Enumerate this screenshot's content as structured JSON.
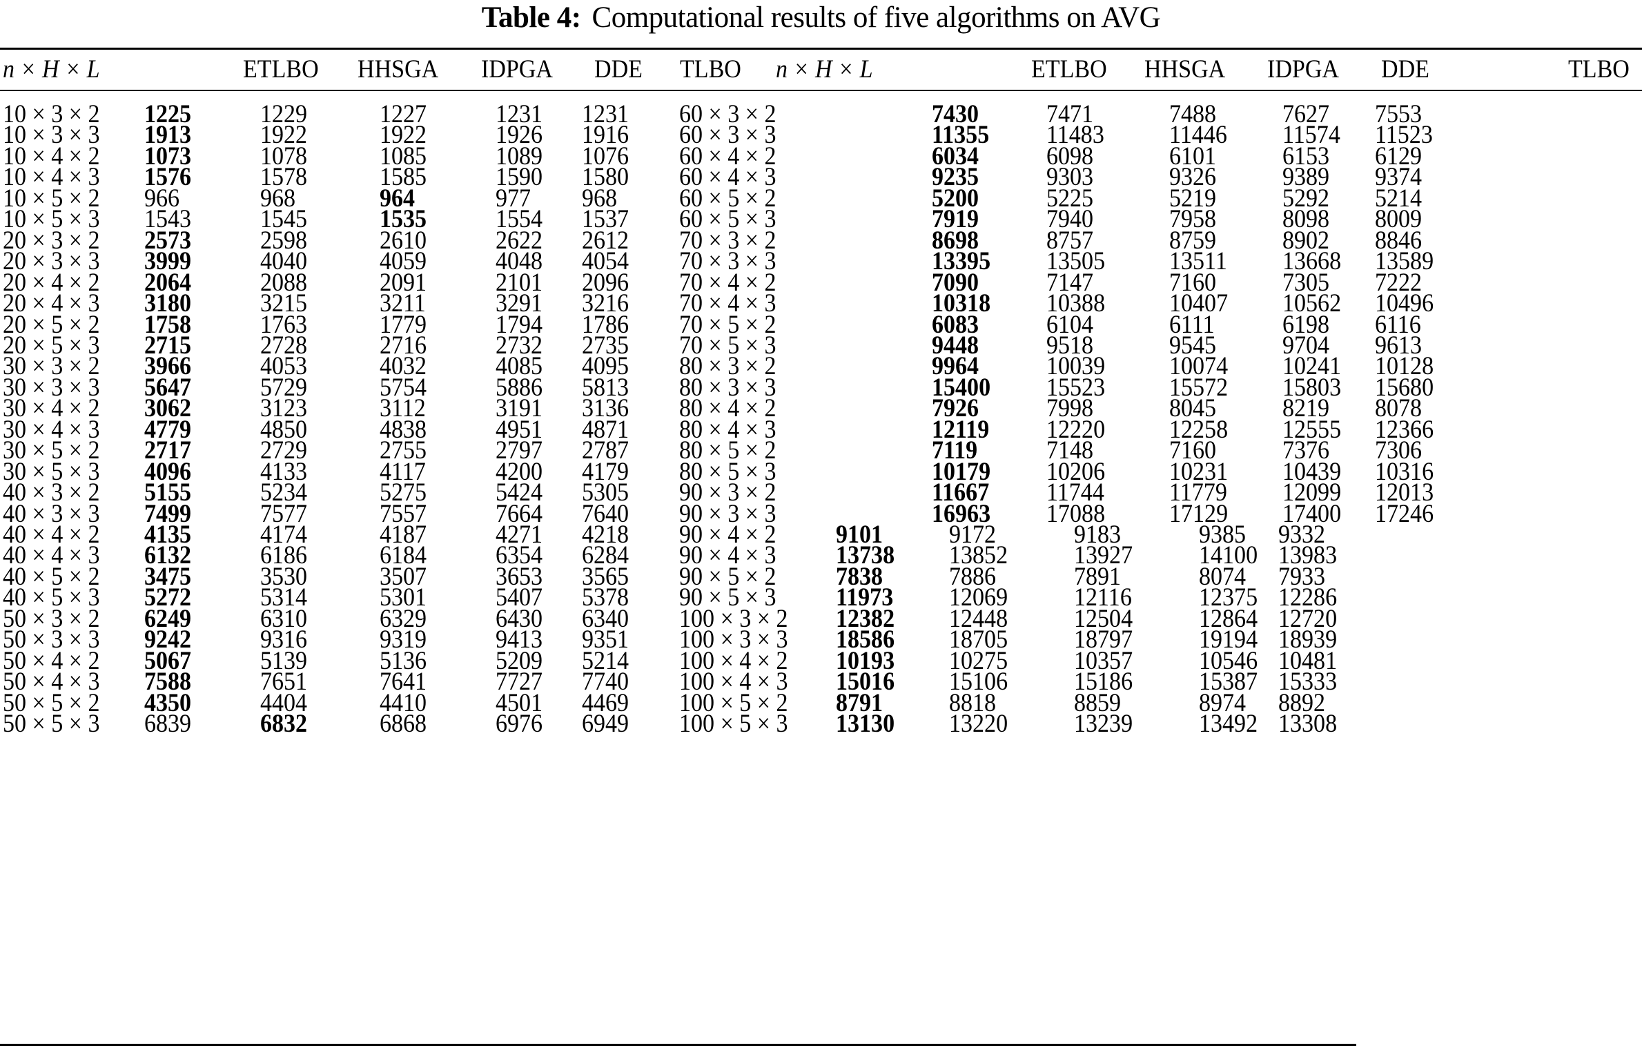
{
  "caption": {
    "label": "Table 4:",
    "text": "Computational results of five algorithms on AVG"
  },
  "header": {
    "left": [
      "n × H × L",
      "",
      "ETLBO",
      "HHSGA",
      "IDPGA",
      "DDE",
      "TLBO"
    ],
    "right": [
      "n × H × L",
      "",
      "ETLBO",
      "HHSGA",
      "IDPGA",
      "DDE",
      "",
      "TLBO"
    ]
  },
  "columns_meaning": [
    "Instance (n × H × L)",
    "ETLBO",
    "HHSGA",
    "IDPGA",
    "DDE",
    "TLBO"
  ],
  "left_rows": [
    {
      "inst": "10 × 3 × 2",
      "v": [
        "1225",
        "1229",
        "1227",
        "1231",
        "1231"
      ],
      "best": 0
    },
    {
      "inst": "10 × 3 × 3",
      "v": [
        "1913",
        "1922",
        "1922",
        "1926",
        "1916"
      ],
      "best": 0
    },
    {
      "inst": "10 × 4 × 2",
      "v": [
        "1073",
        "1078",
        "1085",
        "1089",
        "1076"
      ],
      "best": 0
    },
    {
      "inst": "10 × 4 × 3",
      "v": [
        "1576",
        "1578",
        "1585",
        "1590",
        "1580"
      ],
      "best": 0
    },
    {
      "inst": "10 × 5 × 2",
      "v": [
        "966",
        "968",
        "964",
        "977",
        "968"
      ],
      "best": 2
    },
    {
      "inst": "10 × 5 × 3",
      "v": [
        "1543",
        "1545",
        "1535",
        "1554",
        "1537"
      ],
      "best": 2
    },
    {
      "inst": "20 × 3 × 2",
      "v": [
        "2573",
        "2598",
        "2610",
        "2622",
        "2612"
      ],
      "best": 0
    },
    {
      "inst": "20 × 3 × 3",
      "v": [
        "3999",
        "4040",
        "4059",
        "4048",
        "4054"
      ],
      "best": 0
    },
    {
      "inst": "20 × 4 × 2",
      "v": [
        "2064",
        "2088",
        "2091",
        "2101",
        "2096"
      ],
      "best": 0
    },
    {
      "inst": "20 × 4 × 3",
      "v": [
        "3180",
        "3215",
        "3211",
        "3291",
        "3216"
      ],
      "best": 0
    },
    {
      "inst": "20 × 5 × 2",
      "v": [
        "1758",
        "1763",
        "1779",
        "1794",
        "1786"
      ],
      "best": 0
    },
    {
      "inst": "20 × 5 × 3",
      "v": [
        "2715",
        "2728",
        "2716",
        "2732",
        "2735"
      ],
      "best": 0
    },
    {
      "inst": "30 × 3 × 2",
      "v": [
        "3966",
        "4053",
        "4032",
        "4085",
        "4095"
      ],
      "best": 0
    },
    {
      "inst": "30 × 3 × 3",
      "v": [
        "5647",
        "5729",
        "5754",
        "5886",
        "5813"
      ],
      "best": 0
    },
    {
      "inst": "30 × 4 × 2",
      "v": [
        "3062",
        "3123",
        "3112",
        "3191",
        "3136"
      ],
      "best": 0
    },
    {
      "inst": "30 × 4 × 3",
      "v": [
        "4779",
        "4850",
        "4838",
        "4951",
        "4871"
      ],
      "best": 0
    },
    {
      "inst": "30 × 5 × 2",
      "v": [
        "2717",
        "2729",
        "2755",
        "2797",
        "2787"
      ],
      "best": 0
    },
    {
      "inst": "30 × 5 × 3",
      "v": [
        "4096",
        "4133",
        "4117",
        "4200",
        "4179"
      ],
      "best": 0
    },
    {
      "inst": "40 × 3 × 2",
      "v": [
        "5155",
        "5234",
        "5275",
        "5424",
        "5305"
      ],
      "best": 0
    },
    {
      "inst": "40 × 3 × 3",
      "v": [
        "7499",
        "7577",
        "7557",
        "7664",
        "7640"
      ],
      "best": 0
    },
    {
      "inst": "40 × 4 × 2",
      "v": [
        "4135",
        "4174",
        "4187",
        "4271",
        "4218"
      ],
      "best": 0
    },
    {
      "inst": "40 × 4 × 3",
      "v": [
        "6132",
        "6186",
        "6184",
        "6354",
        "6284"
      ],
      "best": 0
    },
    {
      "inst": "40 × 5 × 2",
      "v": [
        "3475",
        "3530",
        "3507",
        "3653",
        "3565"
      ],
      "best": 0
    },
    {
      "inst": "40 × 5 × 3",
      "v": [
        "5272",
        "5314",
        "5301",
        "5407",
        "5378"
      ],
      "best": 0
    },
    {
      "inst": "50 × 3 × 2",
      "v": [
        "6249",
        "6310",
        "6329",
        "6430",
        "6340"
      ],
      "best": 0
    },
    {
      "inst": "50 × 3 × 3",
      "v": [
        "9242",
        "9316",
        "9319",
        "9413",
        "9351"
      ],
      "best": 0
    },
    {
      "inst": "50 × 4 × 2",
      "v": [
        "5067",
        "5139",
        "5136",
        "5209",
        "5214"
      ],
      "best": 0
    },
    {
      "inst": "50 × 4 × 3",
      "v": [
        "7588",
        "7651",
        "7641",
        "7727",
        "7740"
      ],
      "best": 0
    },
    {
      "inst": "50 × 5 × 2",
      "v": [
        "4350",
        "4404",
        "4410",
        "4501",
        "4469"
      ],
      "best": 0
    },
    {
      "inst": "50 × 5 × 3",
      "v": [
        "6839",
        "6832",
        "6868",
        "6976",
        "6949"
      ],
      "best": 1
    }
  ],
  "right_rows": [
    {
      "inst": "60 × 3 × 2",
      "v": [
        "7430",
        "7471",
        "7488",
        "7627",
        "7553"
      ],
      "best": 0
    },
    {
      "inst": "60 × 3 × 3",
      "v": [
        "11355",
        "11483",
        "11446",
        "11574",
        "11523"
      ],
      "best": 0
    },
    {
      "inst": "60 × 4 × 2",
      "v": [
        "6034",
        "6098",
        "6101",
        "6153",
        "6129"
      ],
      "best": 0
    },
    {
      "inst": "60 × 4 × 3",
      "v": [
        "9235",
        "9303",
        "9326",
        "9389",
        "9374"
      ],
      "best": 0
    },
    {
      "inst": "60 × 5 × 2",
      "v": [
        "5200",
        "5225",
        "5219",
        "5292",
        "5214"
      ],
      "best": 0
    },
    {
      "inst": "60 × 5 × 3",
      "v": [
        "7919",
        "7940",
        "7958",
        "8098",
        "8009"
      ],
      "best": 0
    },
    {
      "inst": "70 × 3 × 2",
      "v": [
        "8698",
        "8757",
        "8759",
        "8902",
        "8846"
      ],
      "best": 0
    },
    {
      "inst": "70 × 3 × 3",
      "v": [
        "13395",
        "13505",
        "13511",
        "13668",
        "13589"
      ],
      "best": 0
    },
    {
      "inst": "70 × 4 × 2",
      "v": [
        "7090",
        "7147",
        "7160",
        "7305",
        "7222"
      ],
      "best": 0
    },
    {
      "inst": "70 × 4 × 3",
      "v": [
        "10318",
        "10388",
        "10407",
        "10562",
        "10496"
      ],
      "best": 0
    },
    {
      "inst": "70 × 5 × 2",
      "v": [
        "6083",
        "6104",
        "6111",
        "6198",
        "6116"
      ],
      "best": 0
    },
    {
      "inst": "70 × 5 × 3",
      "v": [
        "9448",
        "9518",
        "9545",
        "9704",
        "9613"
      ],
      "best": 0
    },
    {
      "inst": "80 × 3 × 2",
      "v": [
        "9964",
        "10039",
        "10074",
        "10241",
        "10128"
      ],
      "best": 0
    },
    {
      "inst": "80 × 3 × 3",
      "v": [
        "15400",
        "15523",
        "15572",
        "15803",
        "15680"
      ],
      "best": 0
    },
    {
      "inst": "80 × 4 × 2",
      "v": [
        "7926",
        "7998",
        "8045",
        "8219",
        "8078"
      ],
      "best": 0
    },
    {
      "inst": "80 × 4 × 3",
      "v": [
        "12119",
        "12220",
        "12258",
        "12555",
        "12366"
      ],
      "best": 0
    },
    {
      "inst": "80 × 5 × 2",
      "v": [
        "7119",
        "7148",
        "7160",
        "7376",
        "7306"
      ],
      "best": 0
    },
    {
      "inst": "80 × 5 × 3",
      "v": [
        "10179",
        "10206",
        "10231",
        "10439",
        "10316"
      ],
      "best": 0
    },
    {
      "inst": "90 × 3 × 2",
      "v": [
        "11667",
        "11744",
        "11779",
        "12099",
        "12013"
      ],
      "best": 0
    },
    {
      "inst": "90 × 3 × 3",
      "v": [
        "16963",
        "17088",
        "17129",
        "17400",
        "17246"
      ],
      "best": 0
    },
    {
      "inst": "90 × 4 × 2",
      "v": [
        "9101",
        "9172",
        "9183",
        "9385",
        "9332"
      ],
      "best": 0
    },
    {
      "inst": "90 × 4 × 3",
      "v": [
        "13738",
        "13852",
        "13927",
        "14100",
        "13983"
      ],
      "best": 0
    },
    {
      "inst": "90 × 5 × 2",
      "v": [
        "7838",
        "7886",
        "7891",
        "8074",
        "7933"
      ],
      "best": 0
    },
    {
      "inst": "90 × 5 × 3",
      "v": [
        "11973",
        "12069",
        "12116",
        "12375",
        "12286"
      ],
      "best": 0
    },
    {
      "inst": "100 × 3 × 2",
      "v": [
        "12382",
        "12448",
        "12504",
        "12864",
        "12720"
      ],
      "best": 0
    },
    {
      "inst": "100 × 3 × 3",
      "v": [
        "18586",
        "18705",
        "18797",
        "19194",
        "18939"
      ],
      "best": 0
    },
    {
      "inst": "100 × 4 × 2",
      "v": [
        "10193",
        "10275",
        "10357",
        "10546",
        "10481"
      ],
      "best": 0
    },
    {
      "inst": "100 × 4 × 3",
      "v": [
        "15016",
        "15106",
        "15186",
        "15387",
        "15333"
      ],
      "best": 0
    },
    {
      "inst": "100 × 5 × 2",
      "v": [
        "8791",
        "8818",
        "8859",
        "8974",
        "8892"
      ],
      "best": 0
    },
    {
      "inst": "100 × 5 × 3",
      "v": [
        "13130",
        "13220",
        "13239",
        "13492",
        "13308"
      ],
      "best": 0
    }
  ]
}
